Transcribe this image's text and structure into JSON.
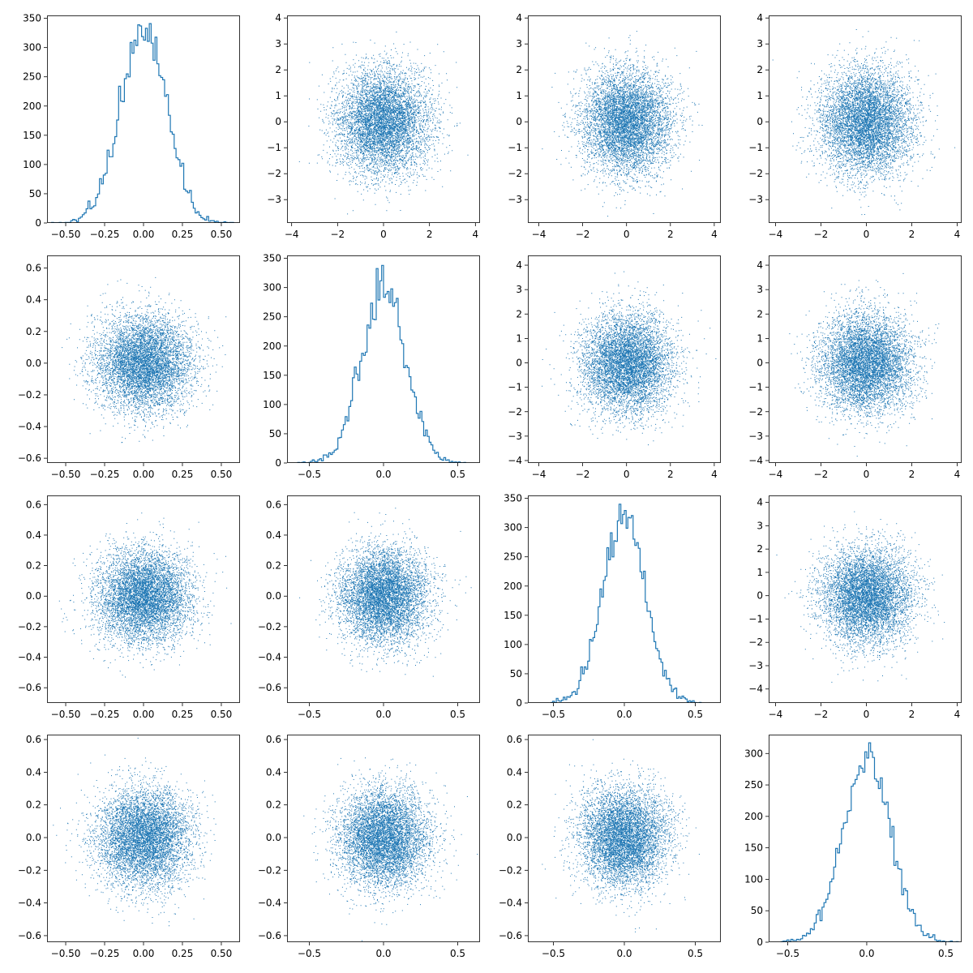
{
  "figure": {
    "accent_color": "#1f77b4",
    "layout": "4x4 pair plot grid (histograms on diagonal, scatter plots off-diagonal)"
  },
  "chart_data": [
    {
      "panel": "r0c0",
      "type": "histogram_step",
      "distribution": {
        "mean": 0.0,
        "std": 0.15,
        "n": 10000
      },
      "xlim": [
        -0.62,
        0.62
      ],
      "xticks": [
        -0.5,
        -0.25,
        0.0,
        0.25,
        0.5
      ],
      "xtick_labels": [
        "−0.50",
        "−0.25",
        "0.00",
        "0.25",
        "0.50"
      ],
      "ylim": [
        0,
        355
      ],
      "yticks": [
        0,
        50,
        100,
        150,
        200,
        250,
        300,
        350
      ],
      "ytick_labels": [
        "0",
        "50",
        "100",
        "150",
        "200",
        "250",
        "300",
        "350"
      ],
      "peak": 341
    },
    {
      "panel": "r0c1",
      "type": "scatter",
      "x_distribution": {
        "mean": 0,
        "std": 1.0
      },
      "y_distribution": {
        "mean": 0,
        "std": 1.0
      },
      "n_points": 10000,
      "xlim": [
        -4.2,
        4.2
      ],
      "xticks": [
        -4,
        -2,
        0,
        2,
        4
      ],
      "xtick_labels": [
        "−4",
        "−2",
        "0",
        "2",
        "4"
      ],
      "ylim": [
        -3.9,
        4.1
      ],
      "yticks": [
        -3,
        -2,
        -1,
        0,
        1,
        2,
        3,
        4
      ],
      "ytick_labels": [
        "−3",
        "−2",
        "−1",
        "0",
        "1",
        "2",
        "3",
        "4"
      ]
    },
    {
      "panel": "r0c2",
      "type": "scatter",
      "x_distribution": {
        "mean": 0,
        "std": 1.0
      },
      "y_distribution": {
        "mean": 0,
        "std": 1.0
      },
      "n_points": 10000,
      "xlim": [
        -4.5,
        4.3
      ],
      "xticks": [
        -4,
        -2,
        0,
        2,
        4
      ],
      "xtick_labels": [
        "−4",
        "−2",
        "0",
        "2",
        "4"
      ],
      "ylim": [
        -3.9,
        4.1
      ],
      "yticks": [
        -3,
        -2,
        -1,
        0,
        1,
        2,
        3,
        4
      ],
      "ytick_labels": [
        "−3",
        "−2",
        "−1",
        "0",
        "1",
        "2",
        "3",
        "4"
      ]
    },
    {
      "panel": "r0c3",
      "type": "scatter",
      "x_distribution": {
        "mean": 0,
        "std": 1.0
      },
      "y_distribution": {
        "mean": 0,
        "std": 1.0
      },
      "n_points": 10000,
      "xlim": [
        -4.3,
        4.2
      ],
      "xticks": [
        -4,
        -2,
        0,
        2,
        4
      ],
      "xtick_labels": [
        "−4",
        "−2",
        "0",
        "2",
        "4"
      ],
      "ylim": [
        -3.9,
        4.1
      ],
      "yticks": [
        -3,
        -2,
        -1,
        0,
        1,
        2,
        3,
        4
      ],
      "ytick_labels": [
        "−3",
        "−2",
        "−1",
        "0",
        "1",
        "2",
        "3",
        "4"
      ]
    },
    {
      "panel": "r1c0",
      "type": "scatter",
      "x_distribution": {
        "mean": 0,
        "std": 0.15
      },
      "y_distribution": {
        "mean": 0,
        "std": 0.15
      },
      "n_points": 10000,
      "xlim": [
        -0.62,
        0.62
      ],
      "xticks": [
        -0.5,
        -0.25,
        0.0,
        0.25,
        0.5
      ],
      "xtick_labels": [
        "−0.50",
        "−0.25",
        "0.00",
        "0.25",
        "0.50"
      ],
      "ylim": [
        -0.63,
        0.68
      ],
      "yticks": [
        -0.6,
        -0.4,
        -0.2,
        0.0,
        0.2,
        0.4,
        0.6
      ],
      "ytick_labels": [
        "−0.6",
        "−0.4",
        "−0.2",
        "0.0",
        "0.2",
        "0.4",
        "0.6"
      ]
    },
    {
      "panel": "r1c1",
      "type": "histogram_step",
      "distribution": {
        "mean": 0.0,
        "std": 0.15,
        "n": 10000
      },
      "xlim": [
        -0.65,
        0.65
      ],
      "xticks": [
        -0.5,
        0.0,
        0.5
      ],
      "xtick_labels": [
        "−0.5",
        "0.0",
        "0.5"
      ],
      "ylim": [
        0,
        355
      ],
      "yticks": [
        0,
        50,
        100,
        150,
        200,
        250,
        300,
        350
      ],
      "ytick_labels": [
        "0",
        "50",
        "100",
        "150",
        "200",
        "250",
        "300",
        "350"
      ],
      "peak": 338
    },
    {
      "panel": "r1c2",
      "type": "scatter",
      "x_distribution": {
        "mean": 0,
        "std": 1.0
      },
      "y_distribution": {
        "mean": 0,
        "std": 1.0
      },
      "n_points": 10000,
      "xlim": [
        -4.5,
        4.3
      ],
      "xticks": [
        -4,
        -2,
        0,
        2,
        4
      ],
      "xtick_labels": [
        "−4",
        "−2",
        "0",
        "2",
        "4"
      ],
      "ylim": [
        -4.1,
        4.4
      ],
      "yticks": [
        -4,
        -3,
        -2,
        -1,
        0,
        1,
        2,
        3,
        4
      ],
      "ytick_labels": [
        "−4",
        "−3",
        "−2",
        "−1",
        "0",
        "1",
        "2",
        "3",
        "4"
      ]
    },
    {
      "panel": "r1c3",
      "type": "scatter",
      "x_distribution": {
        "mean": 0,
        "std": 1.0
      },
      "y_distribution": {
        "mean": 0,
        "std": 1.0
      },
      "n_points": 10000,
      "xlim": [
        -4.3,
        4.2
      ],
      "xticks": [
        -4,
        -2,
        0,
        2,
        4
      ],
      "xtick_labels": [
        "−4",
        "−2",
        "0",
        "2",
        "4"
      ],
      "ylim": [
        -4.1,
        4.4
      ],
      "yticks": [
        -4,
        -3,
        -2,
        -1,
        0,
        1,
        2,
        3,
        4
      ],
      "ytick_labels": [
        "−4",
        "−3",
        "−2",
        "−1",
        "0",
        "1",
        "2",
        "3",
        "4"
      ]
    },
    {
      "panel": "r2c0",
      "type": "scatter",
      "x_distribution": {
        "mean": 0,
        "std": 0.15
      },
      "y_distribution": {
        "mean": 0,
        "std": 0.15
      },
      "n_points": 10000,
      "xlim": [
        -0.62,
        0.62
      ],
      "xticks": [
        -0.5,
        -0.25,
        0.0,
        0.25,
        0.5
      ],
      "xtick_labels": [
        "−0.50",
        "−0.25",
        "0.00",
        "0.25",
        "0.50"
      ],
      "ylim": [
        -0.7,
        0.66
      ],
      "yticks": [
        -0.6,
        -0.4,
        -0.2,
        0.0,
        0.2,
        0.4,
        0.6
      ],
      "ytick_labels": [
        "−0.6",
        "−0.4",
        "−0.2",
        "0.0",
        "0.2",
        "0.4",
        "0.6"
      ]
    },
    {
      "panel": "r2c1",
      "type": "scatter",
      "x_distribution": {
        "mean": 0,
        "std": 0.15
      },
      "y_distribution": {
        "mean": 0,
        "std": 0.15
      },
      "n_points": 10000,
      "xlim": [
        -0.65,
        0.65
      ],
      "xticks": [
        -0.5,
        0.0,
        0.5
      ],
      "xtick_labels": [
        "−0.5",
        "0.0",
        "0.5"
      ],
      "ylim": [
        -0.7,
        0.66
      ],
      "yticks": [
        -0.6,
        -0.4,
        -0.2,
        0.0,
        0.2,
        0.4,
        0.6
      ],
      "ytick_labels": [
        "−0.6",
        "−0.4",
        "−0.2",
        "0.0",
        "0.2",
        "0.4",
        "0.6"
      ]
    },
    {
      "panel": "r2c2",
      "type": "histogram_step",
      "distribution": {
        "mean": 0.0,
        "std": 0.15,
        "n": 10000
      },
      "xlim": [
        -0.68,
        0.68
      ],
      "xticks": [
        -0.5,
        0.0,
        0.5
      ],
      "xtick_labels": [
        "−0.5",
        "0.0",
        "0.5"
      ],
      "ylim": [
        0,
        355
      ],
      "yticks": [
        0,
        50,
        100,
        150,
        200,
        250,
        300,
        350
      ],
      "ytick_labels": [
        "0",
        "50",
        "100",
        "150",
        "200",
        "250",
        "300",
        "350"
      ],
      "peak": 340
    },
    {
      "panel": "r2c3",
      "type": "scatter",
      "x_distribution": {
        "mean": 0,
        "std": 1.0
      },
      "y_distribution": {
        "mean": 0,
        "std": 1.0
      },
      "n_points": 10000,
      "xlim": [
        -4.3,
        4.2
      ],
      "xticks": [
        -4,
        -2,
        0,
        2,
        4
      ],
      "xtick_labels": [
        "−4",
        "−2",
        "0",
        "2",
        "4"
      ],
      "ylim": [
        -4.6,
        4.3
      ],
      "yticks": [
        -4,
        -3,
        -2,
        -1,
        0,
        1,
        2,
        3,
        4
      ],
      "ytick_labels": [
        "−4",
        "−3",
        "−2",
        "−1",
        "0",
        "1",
        "2",
        "3",
        "4"
      ]
    },
    {
      "panel": "r3c0",
      "type": "scatter",
      "x_distribution": {
        "mean": 0,
        "std": 0.15
      },
      "y_distribution": {
        "mean": 0,
        "std": 0.15
      },
      "n_points": 10000,
      "xlim": [
        -0.62,
        0.62
      ],
      "xticks": [
        -0.5,
        -0.25,
        0.0,
        0.25,
        0.5
      ],
      "xtick_labels": [
        "−0.50",
        "−0.25",
        "0.00",
        "0.25",
        "0.50"
      ],
      "ylim": [
        -0.64,
        0.63
      ],
      "yticks": [
        -0.6,
        -0.4,
        -0.2,
        0.0,
        0.2,
        0.4,
        0.6
      ],
      "ytick_labels": [
        "−0.6",
        "−0.4",
        "−0.2",
        "0.0",
        "0.2",
        "0.4",
        "0.6"
      ]
    },
    {
      "panel": "r3c1",
      "type": "scatter",
      "x_distribution": {
        "mean": 0,
        "std": 0.15
      },
      "y_distribution": {
        "mean": 0,
        "std": 0.15
      },
      "n_points": 10000,
      "xlim": [
        -0.65,
        0.65
      ],
      "xticks": [
        -0.5,
        0.0,
        0.5
      ],
      "xtick_labels": [
        "−0.5",
        "0.0",
        "0.5"
      ],
      "ylim": [
        -0.64,
        0.63
      ],
      "yticks": [
        -0.6,
        -0.4,
        -0.2,
        0.0,
        0.2,
        0.4,
        0.6
      ],
      "ytick_labels": [
        "−0.6",
        "−0.4",
        "−0.2",
        "0.0",
        "0.2",
        "0.4",
        "0.6"
      ]
    },
    {
      "panel": "r3c2",
      "type": "scatter",
      "x_distribution": {
        "mean": 0,
        "std": 0.15
      },
      "y_distribution": {
        "mean": 0,
        "std": 0.15
      },
      "n_points": 10000,
      "xlim": [
        -0.68,
        0.68
      ],
      "xticks": [
        -0.5,
        0.0,
        0.5
      ],
      "xtick_labels": [
        "−0.5",
        "0.0",
        "0.5"
      ],
      "ylim": [
        -0.64,
        0.63
      ],
      "yticks": [
        -0.6,
        -0.4,
        -0.2,
        0.0,
        0.2,
        0.4,
        0.6
      ],
      "ytick_labels": [
        "−0.6",
        "−0.4",
        "−0.2",
        "0.0",
        "0.2",
        "0.4",
        "0.6"
      ]
    },
    {
      "panel": "r3c3",
      "type": "histogram_step",
      "distribution": {
        "mean": 0.0,
        "std": 0.15,
        "n": 10000
      },
      "xlim": [
        -0.62,
        0.6
      ],
      "xticks": [
        -0.5,
        0.0,
        0.5
      ],
      "xtick_labels": [
        "−0.5",
        "0.0",
        "0.5"
      ],
      "ylim": [
        0,
        330
      ],
      "yticks": [
        0,
        50,
        100,
        150,
        200,
        250,
        300
      ],
      "ytick_labels": [
        "0",
        "50",
        "100",
        "150",
        "200",
        "250",
        "300"
      ],
      "peak": 317
    }
  ]
}
